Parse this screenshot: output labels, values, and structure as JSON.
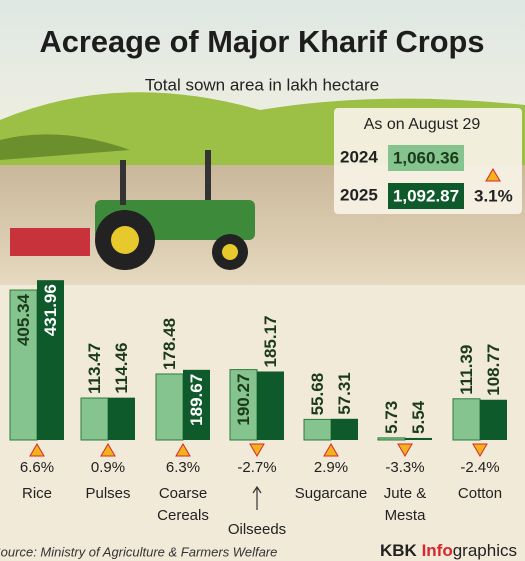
{
  "chart_data": {
    "type": "bar",
    "title": "Acreage of Major Kharif Crops",
    "subtitle": "Total sown area in lakh hectare",
    "categories": [
      "Rice",
      "Pulses",
      "Coarse Cereals",
      "Oilseeds",
      "Sugarcane",
      "Jute & Mesta",
      "Cotton"
    ],
    "series": [
      {
        "name": "2024",
        "color": "#86c48f",
        "values": [
          405.34,
          113.47,
          178.48,
          190.27,
          55.68,
          5.73,
          111.39
        ]
      },
      {
        "name": "2025",
        "color": "#0e5a2b",
        "values": [
          431.96,
          114.46,
          189.67,
          185.17,
          57.31,
          5.54,
          108.77
        ]
      }
    ],
    "changes": {
      "values": [
        6.6,
        0.9,
        6.3,
        -2.7,
        2.9,
        -3.3,
        -2.4
      ],
      "value_labels": [
        "6.6%",
        "0.9%",
        "6.3%",
        "-2.7%",
        "2.9%",
        "-3.3%",
        "-2.4%"
      ]
    },
    "totals": {
      "label": "As on August 29",
      "rows": [
        {
          "year": "2024",
          "value": 1060.36,
          "value_label": "1,060.36"
        },
        {
          "year": "2025",
          "value": 1092.87,
          "value_label": "1,092.87"
        }
      ],
      "change": 3.1,
      "change_label": "3.1%"
    },
    "source": "Source: Ministry of Agriculture & Farmers Welfare",
    "brand": [
      "KBK ",
      "Info",
      "graphics"
    ]
  }
}
